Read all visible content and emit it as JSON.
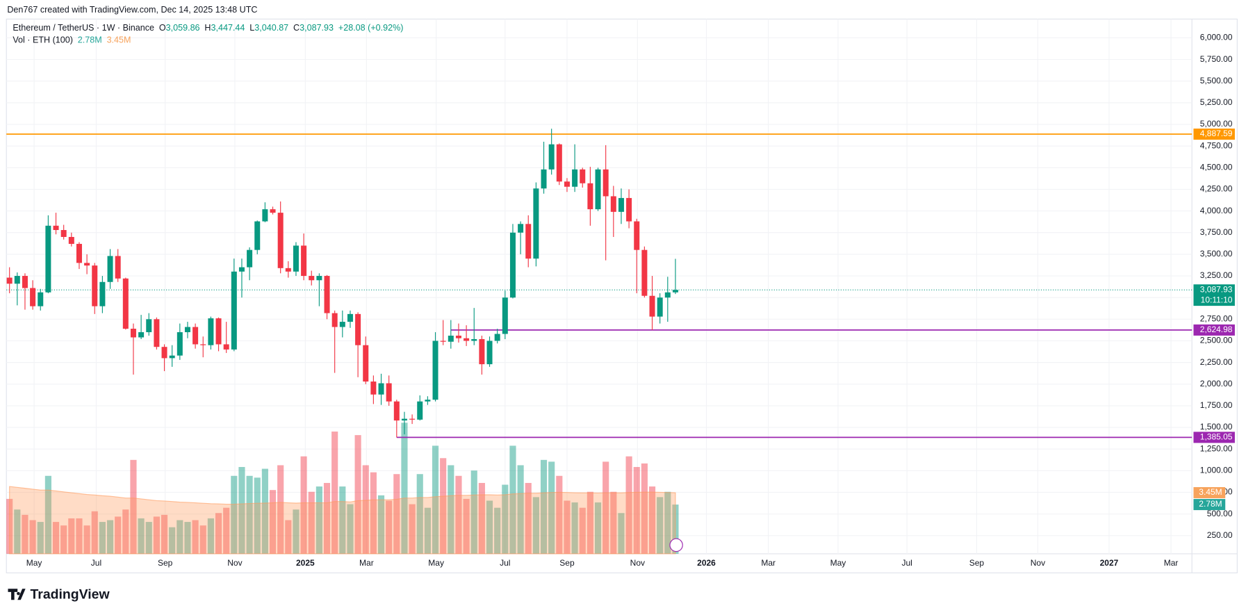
{
  "header": {
    "credit": "Den767 created with TradingView.com, Dec 14, 2025 13:48 UTC",
    "logo": "TradingView"
  },
  "legend": {
    "symbol": "Ethereum / TetherUS · 1W · Binance",
    "o_key": "O",
    "o": "3,059.86",
    "h_key": "H",
    "h": "3,447.44",
    "l_key": "L",
    "l": "3,040.87",
    "c_key": "C",
    "c": "3,087.93",
    "change": "+28.08 (+0.92%)",
    "vol_title": "Vol · ETH (100)"
  },
  "chart_data": {
    "type": "candlestick",
    "open": [
      3230,
      3160,
      3250,
      3110,
      2900,
      3060,
      3830,
      3780,
      3700,
      3620,
      3400,
      3370,
      2900,
      3180,
      3480,
      3220,
      2640,
      2540,
      2600,
      2750,
      2430,
      2300,
      2330,
      2600,
      2660,
      2460,
      2450,
      2760,
      2460,
      2400,
      3300,
      3350,
      3550,
      3880,
      4020,
      3980,
      3340,
      3300,
      3600,
      3250,
      3200,
      3250,
      2820,
      2660,
      2720,
      2810,
      2450,
      2030,
      1880,
      2010,
      1800,
      1580,
      1600,
      1590,
      1800,
      1820,
      2500,
      2490,
      2560,
      2530,
      2500,
      2520,
      2230,
      2500,
      2580,
      3000,
      3750,
      3850,
      3450,
      4260,
      4480,
      4770,
      4340,
      4280,
      4480,
      4320,
      4020,
      4480,
      4170,
      3990,
      4150,
      3880,
      3550,
      3020,
      2780,
      3000,
      3059.86
    ],
    "high": [
      3350,
      3290,
      3280,
      3200,
      3100,
      3950,
      3980,
      3840,
      3750,
      3640,
      3500,
      3400,
      3250,
      3560,
      3560,
      3230,
      2700,
      2800,
      2820,
      2770,
      2460,
      2450,
      2700,
      2720,
      2700,
      2550,
      2780,
      2770,
      2720,
      3450,
      3450,
      3580,
      3890,
      4100,
      4050,
      4110,
      3420,
      3640,
      3740,
      3310,
      3280,
      3260,
      2850,
      2850,
      2850,
      2830,
      2550,
      2100,
      2120,
      2100,
      1820,
      1680,
      1650,
      1870,
      1860,
      2600,
      2740,
      2740,
      2700,
      2680,
      2880,
      2560,
      2550,
      2640,
      3080,
      3850,
      3880,
      3950,
      4330,
      4800,
      4950,
      4780,
      4380,
      4770,
      4500,
      4510,
      4500,
      4760,
      4290,
      4260,
      4250,
      3910,
      3590,
      3250,
      3050,
      3240,
      3447.44
    ],
    "low": [
      3050,
      2910,
      2860,
      2860,
      2850,
      3050,
      3730,
      3670,
      3590,
      3330,
      3270,
      2810,
      2820,
      3100,
      3180,
      2630,
      2110,
      2520,
      2560,
      2400,
      2150,
      2200,
      2280,
      2530,
      2410,
      2310,
      2400,
      2380,
      2360,
      2380,
      3000,
      3200,
      3500,
      3870,
      3960,
      3280,
      3230,
      3250,
      3200,
      3140,
      2900,
      2750,
      2130,
      2540,
      2650,
      2080,
      2000,
      1770,
      1760,
      1750,
      1385.05,
      1420,
      1540,
      1580,
      1760,
      1800,
      2450,
      2410,
      2480,
      2440,
      2450,
      2110,
      2200,
      2470,
      2520,
      2990,
      3500,
      3350,
      3360,
      4200,
      4420,
      4300,
      4220,
      4220,
      4270,
      3830,
      4000,
      3430,
      3700,
      3850,
      3800,
      3050,
      3000,
      2624.98,
      2700,
      2720,
      3040.87
    ],
    "close": [
      3160,
      3250,
      3110,
      2900,
      3060,
      3830,
      3780,
      3700,
      3620,
      3400,
      3370,
      2900,
      3180,
      3480,
      3220,
      2640,
      2540,
      2600,
      2750,
      2430,
      2300,
      2330,
      2600,
      2660,
      2460,
      2450,
      2760,
      2460,
      2400,
      3300,
      3350,
      3550,
      3880,
      4020,
      3980,
      3340,
      3300,
      3600,
      3250,
      3200,
      3250,
      2820,
      2660,
      2720,
      2810,
      2450,
      2030,
      1880,
      2010,
      1800,
      1580,
      1600,
      1590,
      1800,
      1820,
      2500,
      2490,
      2560,
      2530,
      2500,
      2520,
      2230,
      2500,
      2580,
      3000,
      3750,
      3850,
      3450,
      4260,
      4480,
      4770,
      4340,
      4280,
      4480,
      4320,
      4020,
      4480,
      4170,
      3990,
      4150,
      3880,
      3550,
      3020,
      2780,
      3000,
      3059.86,
      3087.93
    ],
    "volume": [
      3.1,
      2.5,
      2.2,
      1.9,
      1.8,
      4.4,
      1.8,
      1.6,
      2.0,
      2.0,
      1.6,
      2.4,
      1.8,
      1.9,
      2.1,
      2.5,
      5.3,
      2.0,
      1.8,
      2.1,
      2.2,
      1.5,
      1.9,
      1.8,
      1.9,
      1.6,
      2.0,
      2.3,
      2.6,
      4.4,
      4.9,
      4.4,
      4.3,
      4.8,
      3.6,
      5.0,
      1.9,
      2.5,
      5.5,
      3.5,
      3.8,
      4.0,
      6.9,
      3.8,
      2.8,
      6.7,
      5.0,
      4.6,
      3.3,
      3.0,
      4.5,
      7.4,
      2.8,
      4.5,
      2.6,
      6.1,
      5.4,
      5.0,
      4.4,
      3.1,
      4.7,
      4.0,
      3.0,
      2.6,
      3.9,
      6.1,
      5.0,
      4.0,
      3.2,
      5.3,
      5.2,
      4.4,
      3.0,
      2.9,
      2.6,
      3.5,
      2.9,
      5.2,
      3.5,
      2.3,
      5.5,
      4.9,
      5.1,
      3.8,
      3.2,
      3.5,
      2.78
    ],
    "volume_ma": [
      3.8,
      3.75,
      3.7,
      3.65,
      3.6,
      3.6,
      3.55,
      3.5,
      3.45,
      3.4,
      3.35,
      3.32,
      3.28,
      3.25,
      3.2,
      3.15,
      3.15,
      3.1,
      3.05,
      3.0,
      2.98,
      2.95,
      2.92,
      2.9,
      2.88,
      2.85,
      2.83,
      2.82,
      2.8,
      2.8,
      2.82,
      2.84,
      2.85,
      2.86,
      2.88,
      2.9,
      2.88,
      2.86,
      2.88,
      2.88,
      2.88,
      2.88,
      2.95,
      2.95,
      2.93,
      3.0,
      3.02,
      3.05,
      3.05,
      3.05,
      3.08,
      3.15,
      3.15,
      3.18,
      3.18,
      3.22,
      3.25,
      3.28,
      3.3,
      3.3,
      3.32,
      3.33,
      3.33,
      3.32,
      3.33,
      3.38,
      3.4,
      3.42,
      3.42,
      3.44,
      3.46,
      3.47,
      3.46,
      3.45,
      3.44,
      3.44,
      3.43,
      3.45,
      3.45,
      3.44,
      3.46,
      3.47,
      3.48,
      3.48,
      3.47,
      3.46,
      3.45
    ],
    "up_color": "#089981",
    "down_color": "#f23645",
    "ma_color": "#ff9a5c",
    "xlim": [
      -0.4,
      152.7
    ],
    "xticks": [
      {
        "value": 3.18,
        "label": "May"
      },
      {
        "value": 11.2,
        "label": "Jul"
      },
      {
        "value": 20.1,
        "label": "Sep"
      },
      {
        "value": 29.1,
        "label": "Nov"
      },
      {
        "value": 38.2,
        "label": "2025"
      },
      {
        "value": 46.1,
        "label": "Mar"
      },
      {
        "value": 55.1,
        "label": "May"
      },
      {
        "value": 64.0,
        "label": "Jul"
      },
      {
        "value": 72.0,
        "label": "Sep"
      },
      {
        "value": 81.1,
        "label": "Nov"
      },
      {
        "value": 90.0,
        "label": "2026"
      },
      {
        "value": 98.0,
        "label": "Mar"
      },
      {
        "value": 107.0,
        "label": "May"
      },
      {
        "value": 115.9,
        "label": "Jul"
      },
      {
        "value": 124.9,
        "label": "Sep"
      },
      {
        "value": 132.8,
        "label": "Nov"
      },
      {
        "value": 142.0,
        "label": "2027"
      },
      {
        "value": 150.0,
        "label": "Mar"
      }
    ],
    "ylim": [
      40,
      6180
    ],
    "yticks": [
      {
        "value": 250,
        "label": "250.00"
      },
      {
        "value": 500,
        "label": "500.00"
      },
      {
        "value": 750,
        "label": "750.00"
      },
      {
        "value": 1000,
        "label": "1,000.00"
      },
      {
        "value": 1250,
        "label": "1,250.00"
      },
      {
        "value": 1500,
        "label": "1,500.00"
      },
      {
        "value": 1750,
        "label": "1,750.00"
      },
      {
        "value": 2000,
        "label": "2,000.00"
      },
      {
        "value": 2250,
        "label": "2,250.00"
      },
      {
        "value": 2500,
        "label": "2,500.00"
      },
      {
        "value": 2750,
        "label": "2,750.00"
      },
      {
        "value": 3000,
        "label": "3,000.00"
      },
      {
        "value": 3250,
        "label": "3,250.00"
      },
      {
        "value": 3500,
        "label": "3,500.00"
      },
      {
        "value": 3750,
        "label": "3,750.00"
      },
      {
        "value": 4000,
        "label": "4,000.00"
      },
      {
        "value": 4250,
        "label": "4,250.00"
      },
      {
        "value": 4500,
        "label": "4,500.00"
      },
      {
        "value": 4750,
        "label": "4,750.00"
      },
      {
        "value": 5000,
        "label": "5,000.00"
      },
      {
        "value": 5250,
        "label": "5,250.00"
      },
      {
        "value": 5500,
        "label": "5,500.00"
      },
      {
        "value": 5750,
        "label": "5,750.00"
      },
      {
        "value": 6000,
        "label": "6,000.00"
      }
    ],
    "vlim": [
      0,
      30
    ],
    "grid": true,
    "hlines": [
      {
        "value": 4887.59,
        "label": "4,887.59",
        "color": "#ff9800"
      },
      {
        "value": 2624.98,
        "label": "2,624.98",
        "color": "#9c27b0",
        "from": 57
      },
      {
        "value": 1385.05,
        "label": "1,385.05",
        "color": "#9c27b0",
        "from": 50
      }
    ],
    "last_price": {
      "value": 3087.93,
      "label": "3,087.93",
      "countdown": "10:11:10",
      "color": "#089981"
    },
    "volume_tags": [
      {
        "value": 3.45,
        "label": "3.45M",
        "color": "#f7a35c"
      },
      {
        "value": 2.78,
        "label": "2.78M",
        "color": "#26a69a"
      }
    ]
  }
}
